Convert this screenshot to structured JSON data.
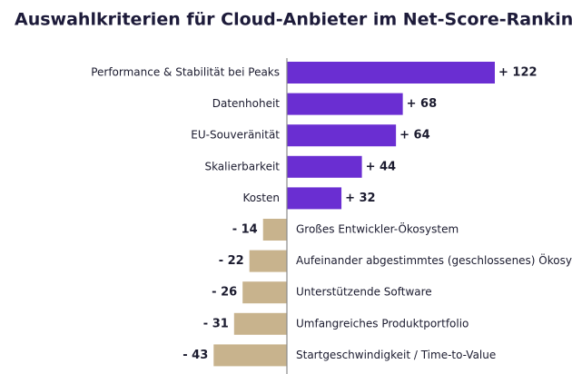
{
  "chart_data": {
    "type": "bar",
    "orientation": "horizontal",
    "title": "Auswahlkriterien für Cloud-Anbieter im Net-Score-Ranking",
    "categories": [
      "Performance & Stabilität bei Peaks",
      "Datenhoheit",
      "EU-Souveränität",
      "Skalierbarkeit",
      "Kosten",
      "Großes Entwickler-Ökosystem",
      "Aufeinander abgestimmtes (geschlossenes) Ökosystem",
      "Unterstützende Software",
      "Umfangreiches Produktportfolio",
      "Startgeschwindigkeit / Time-to-Value"
    ],
    "values": [
      122,
      68,
      64,
      44,
      32,
      -14,
      -22,
      -26,
      -31,
      -43
    ],
    "value_labels": [
      "+ 122",
      "+ 68",
      "+ 64",
      "+ 44",
      "+ 32",
      "- 14",
      "- 22",
      "- 26",
      "- 31",
      "- 43"
    ],
    "positive_color": "#6a2ed2",
    "negative_color": "#c8b38d"
  }
}
